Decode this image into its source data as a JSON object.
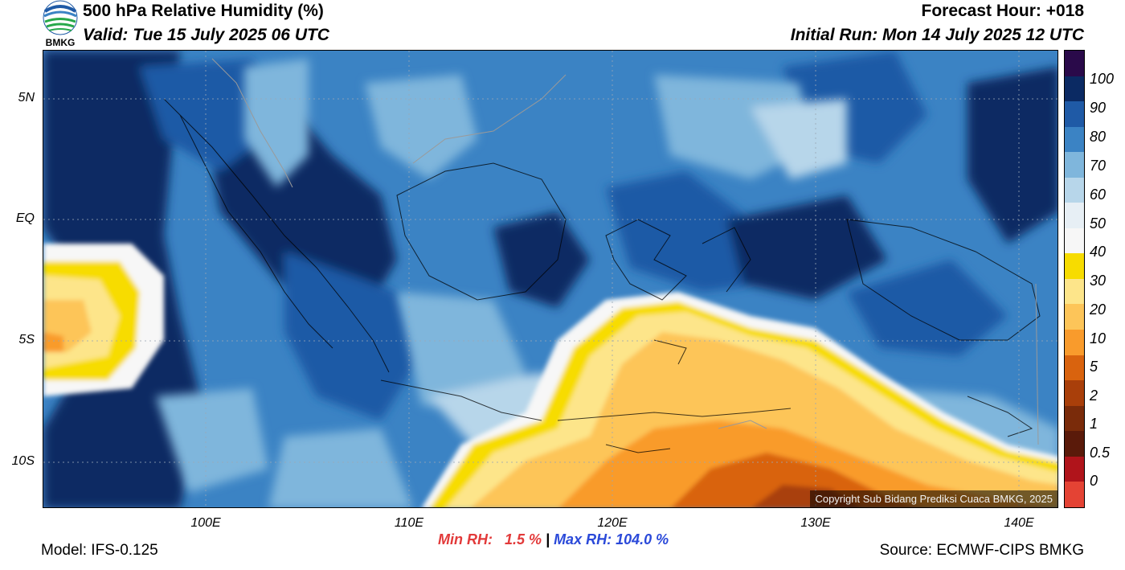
{
  "header": {
    "title": "500 hPa Relative Humidity (%)",
    "valid": "Valid: Tue 15 July 2025 06 UTC",
    "forecast_hour": "Forecast Hour: +018",
    "initial_run": "Initial Run: Mon 14 July 2025 12 UTC",
    "logo_text": "BMKG"
  },
  "map": {
    "lat_labels": [
      "5N",
      "EQ",
      "5S",
      "10S"
    ],
    "lon_labels": [
      "100E",
      "110E",
      "120E",
      "130E",
      "140E"
    ],
    "copyright": "Copyright Sub Bidang Prediksi Cuaca BMKG, 2025"
  },
  "colorbar": {
    "labels": [
      "100",
      "90",
      "80",
      "70",
      "60",
      "50",
      "40",
      "30",
      "20",
      "10",
      "5",
      "2",
      "1",
      "0.5",
      "0"
    ],
    "colors": [
      "#2a0a4a",
      "#0b2a63",
      "#1f5aa6",
      "#3b83c4",
      "#7fb6dc",
      "#b7d6ea",
      "#e7eff5",
      "#f7f7f7",
      "#f7dc00",
      "#fde58a",
      "#fdc559",
      "#f99b2c",
      "#d9630e",
      "#a93f0a",
      "#7a2b0a",
      "#5a1a0a",
      "#b0141b",
      "#e44334"
    ]
  },
  "stats": {
    "min_rh": "Min RH:   1.5 %",
    "separator": " | ",
    "max_rh": "Max RH: 104.0 %"
  },
  "footer": {
    "model": "Model: IFS-0.125",
    "source": "Source: ECMWF-CIPS BMKG"
  }
}
